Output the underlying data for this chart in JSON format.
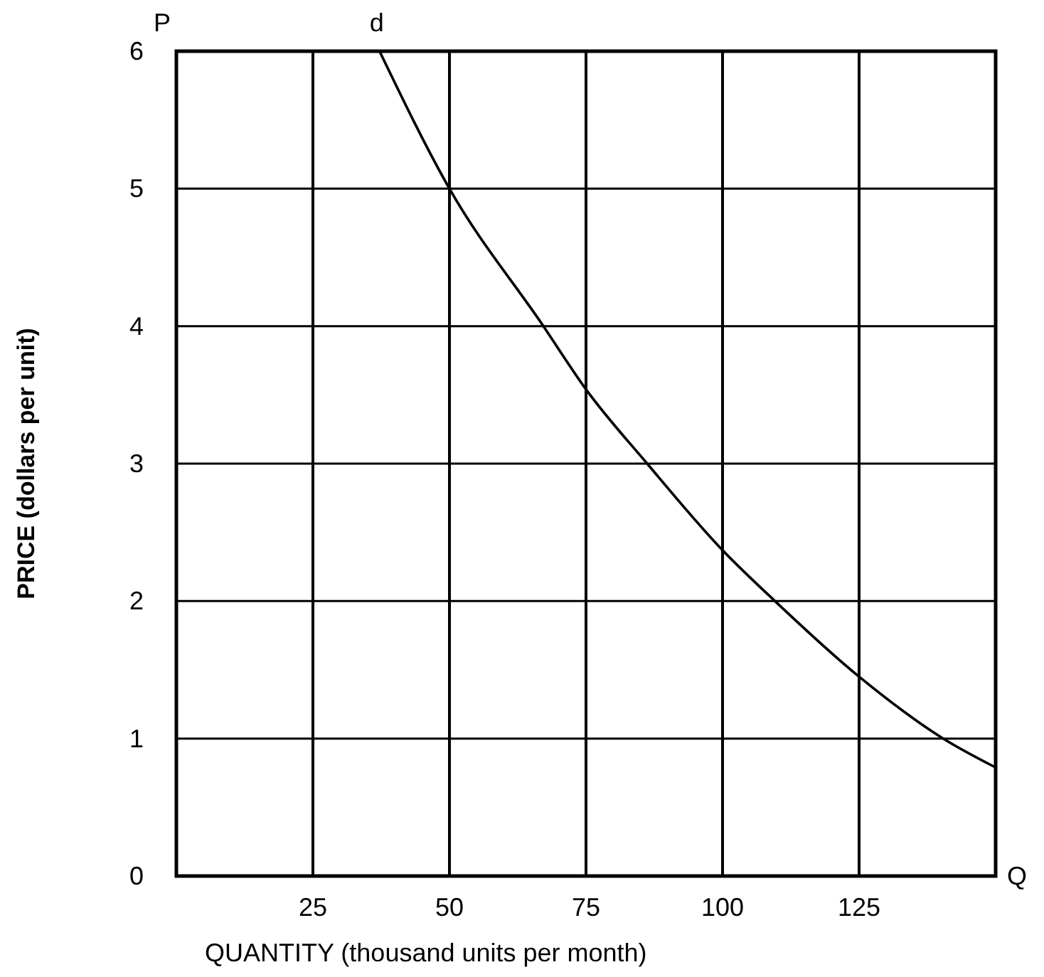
{
  "chart_data": {
    "type": "line",
    "xlabel": "QUANTITY (thousand units per month)",
    "ylabel": "PRICE (dollars per unit)",
    "x": [
      37.2,
      50,
      67.2,
      75,
      86.2,
      100,
      109.6,
      125,
      140.4,
      150
    ],
    "series": [
      {
        "color": "#000000",
        "values": [
          6,
          5,
          4,
          3.54,
          3,
          2.37,
          2,
          1.45,
          1,
          0.79
        ]
      }
    ],
    "xlim": [
      0,
      150
    ],
    "ylim": [
      0,
      6
    ],
    "xticks": [
      25,
      50,
      75,
      100,
      125
    ],
    "yticks": [
      0,
      1,
      2,
      3,
      4,
      5,
      6
    ],
    "grid": true,
    "marker": "none",
    "line_style": "solid",
    "annotations": [
      "P",
      {
        "text": "d",
        "x": 37.2,
        "y": 6
      },
      "Q"
    ]
  }
}
